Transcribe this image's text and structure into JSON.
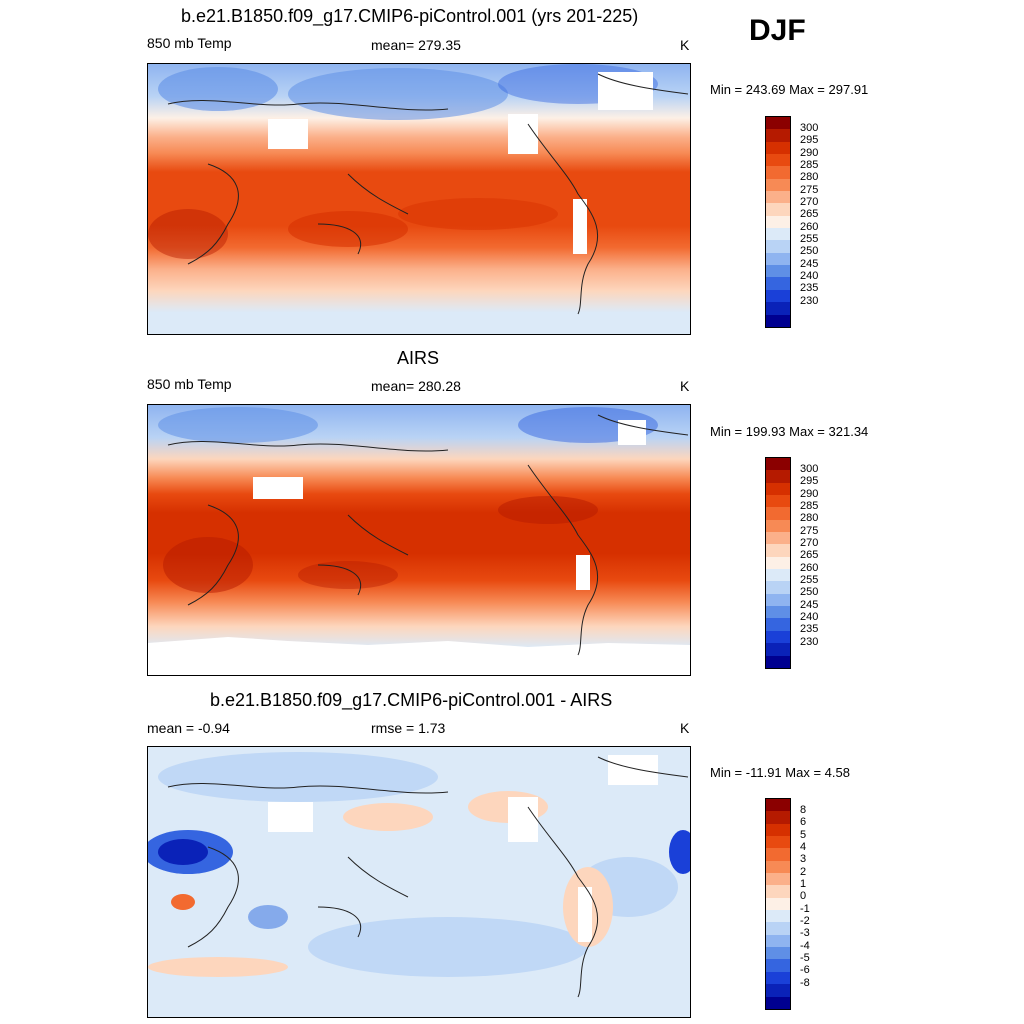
{
  "season": "DJF",
  "panels": [
    {
      "title": "b.e21.B1850.f09_g17.CMIP6-piControl.001 (yrs 201-225)",
      "left_label": "850 mb Temp",
      "center_label": "mean= 279.35",
      "units": "K",
      "minmax": "Min = 243.69 Max = 297.91",
      "kind": "model"
    },
    {
      "title": "AIRS",
      "left_label": "850 mb Temp",
      "center_label": "mean= 280.28",
      "units": "K",
      "minmax": "Min = 199.93 Max = 321.34",
      "kind": "obs"
    },
    {
      "title": "b.e21.B1850.f09_g17.CMIP6-piControl.001 - AIRS",
      "left_label": "mean =  -0.94",
      "center_label": "rmse =   1.73",
      "units": "K",
      "minmax": "Min = -11.91 Max =   4.58",
      "kind": "diff"
    }
  ],
  "colorbars": {
    "abs": {
      "labels": [
        "300",
        "295",
        "290",
        "285",
        "280",
        "275",
        "270",
        "265",
        "260",
        "255",
        "250",
        "245",
        "240",
        "235",
        "230"
      ],
      "colors": [
        "#8b0000",
        "#b51a00",
        "#d63000",
        "#e84a10",
        "#f26a30",
        "#f78a55",
        "#fbb08a",
        "#fdd6bd",
        "#fdf0e6",
        "#dceaf8",
        "#b9d3f5",
        "#8fb4f0",
        "#5f8fe6",
        "#3565e0",
        "#1a40d8",
        "#0a22b8",
        "#000090"
      ]
    },
    "diff": {
      "labels": [
        "8",
        "6",
        "5",
        "4",
        "3",
        "2",
        "1",
        "0",
        "-1",
        "-2",
        "-3",
        "-4",
        "-5",
        "-6",
        "-8"
      ],
      "colors": [
        "#8b0000",
        "#b51a00",
        "#d63000",
        "#e84a10",
        "#f26a30",
        "#f78a55",
        "#fbb08a",
        "#fdd6bd",
        "#fdf0e6",
        "#dceaf8",
        "#b9d3f5",
        "#8fb4f0",
        "#5f8fe6",
        "#3565e0",
        "#1a40d8",
        "#0a22b8",
        "#000090"
      ]
    }
  }
}
